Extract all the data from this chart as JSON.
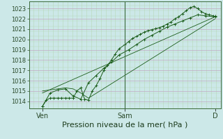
{
  "bg_color": "#cce8e8",
  "plot_bg_color": "#cce8e8",
  "grid_color_major_h": "#c0a8c0",
  "grid_color_minor_v": "#b8d8b8",
  "grid_color_minor_h": "#b8d8b8",
  "line_color": "#1a5c1a",
  "yticks": [
    1014,
    1015,
    1016,
    1017,
    1018,
    1019,
    1020,
    1021,
    1022,
    1023
  ],
  "ylim": [
    1013.3,
    1023.7
  ],
  "xlabel": "Pression niveau de la mer( hPa )",
  "xlabel_fontsize": 8,
  "xtick_labels": [
    "Ven",
    "Sam",
    "D"
  ],
  "xtick_positions": [
    0.07,
    0.5,
    0.97
  ],
  "series1_x": [
    0.07,
    0.09,
    0.11,
    0.13,
    0.15,
    0.17,
    0.19,
    0.21,
    0.23,
    0.25,
    0.27,
    0.29,
    0.31,
    0.33,
    0.35,
    0.37,
    0.39,
    0.41,
    0.43,
    0.45,
    0.47,
    0.5,
    0.52,
    0.54,
    0.56,
    0.58,
    0.6,
    0.62,
    0.64,
    0.66,
    0.68,
    0.7,
    0.72,
    0.74,
    0.76,
    0.78,
    0.8,
    0.82,
    0.84,
    0.86,
    0.88,
    0.9,
    0.92,
    0.94,
    0.96,
    0.97
  ],
  "series1_y": [
    1013.5,
    1014.1,
    1014.3,
    1014.3,
    1014.3,
    1014.3,
    1014.3,
    1014.3,
    1014.3,
    1015.0,
    1015.3,
    1014.2,
    1014.1,
    1015.0,
    1015.5,
    1016.2,
    1017.0,
    1017.5,
    1018.0,
    1018.6,
    1019.1,
    1019.5,
    1019.8,
    1020.1,
    1020.3,
    1020.5,
    1020.7,
    1020.85,
    1020.95,
    1021.05,
    1021.15,
    1021.3,
    1021.5,
    1021.7,
    1022.0,
    1022.2,
    1022.5,
    1022.8,
    1023.1,
    1023.2,
    1023.0,
    1022.7,
    1022.5,
    1022.4,
    1022.3,
    1022.25
  ],
  "series2_x": [
    0.07,
    0.11,
    0.15,
    0.19,
    0.23,
    0.27,
    0.31,
    0.35,
    0.39,
    0.43,
    0.47,
    0.52,
    0.56,
    0.6,
    0.64,
    0.68,
    0.72,
    0.76,
    0.8,
    0.84,
    0.88,
    0.92,
    0.97
  ],
  "series2_y": [
    1013.5,
    1014.8,
    1015.1,
    1015.2,
    1014.5,
    1014.2,
    1015.8,
    1016.5,
    1017.2,
    1017.8,
    1018.5,
    1019.0,
    1019.5,
    1020.0,
    1020.4,
    1020.8,
    1021.2,
    1021.5,
    1021.8,
    1022.1,
    1022.4,
    1022.3,
    1022.2
  ],
  "series3_x": [
    0.07,
    0.97
  ],
  "series3_y": [
    1014.8,
    1022.2
  ],
  "series4_x": [
    0.07,
    0.19,
    0.23,
    0.27,
    0.31,
    0.97
  ],
  "series4_y": [
    1015.0,
    1015.3,
    1015.2,
    1014.8,
    1014.3,
    1022.0
  ],
  "vline_x": 0.5,
  "figsize": [
    3.2,
    2.0
  ],
  "dpi": 100
}
